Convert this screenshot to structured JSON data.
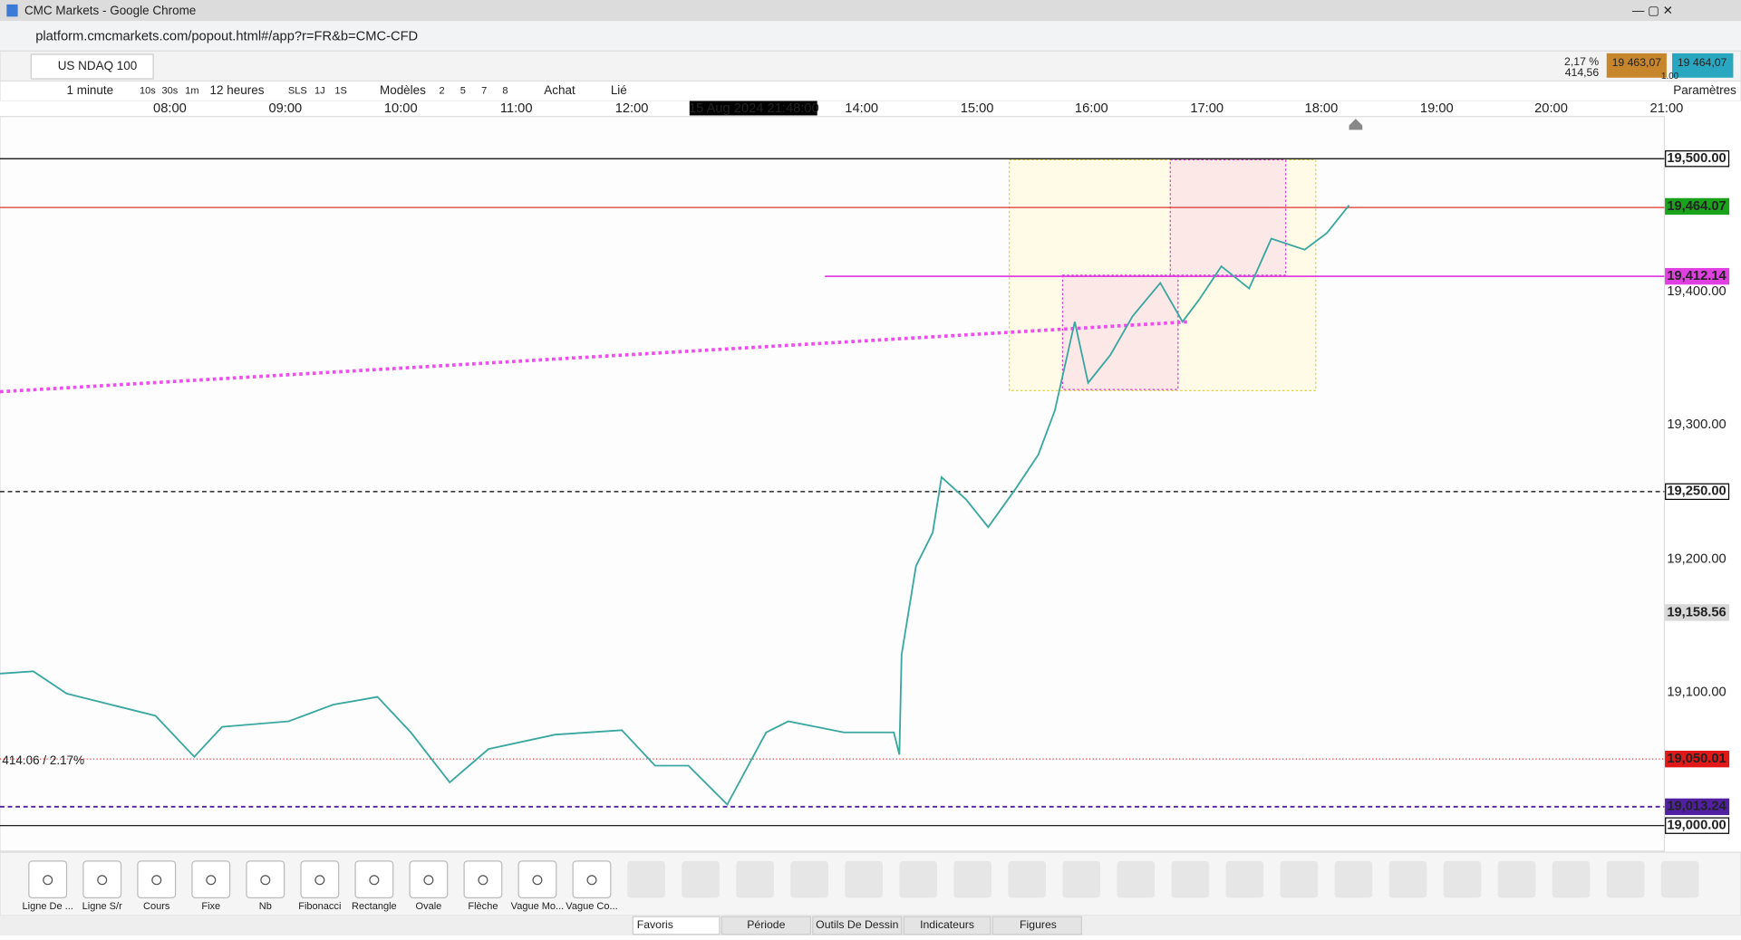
{
  "window": {
    "title": "CMC Markets - Google Chrome",
    "url": "platform.cmcmarkets.com/popout.html#/app?r=FR&b=CMC-CFD"
  },
  "instrument": {
    "name": "US NDAQ 100",
    "change_pct": "2,17 %",
    "change": "414,56",
    "sell": "19 463,07",
    "buy": "19 464,07",
    "spread": "1.00"
  },
  "toolbar": {
    "interval": "1 minute",
    "quick": [
      "10s",
      "30s",
      "1m"
    ],
    "range": "12 heures",
    "periods": [
      "SLS",
      "1J",
      "1S"
    ],
    "models": "Modèles",
    "counts": [
      "2",
      "5",
      "7",
      "8"
    ],
    "buy": "Achat",
    "linked": "Lié",
    "settings": "Paramètres"
  },
  "time_axis": {
    "labels": [
      "08:00",
      "09:00",
      "10:00",
      "11:00",
      "12:00",
      "14:00",
      "15:00",
      "16:00",
      "17:00",
      "18:00",
      "19:00",
      "20:00",
      "21:00"
    ],
    "cursor": "15 Aug 2024 21:48:00"
  },
  "price_axis": {
    "labels": [
      "19,500.00",
      "19,464.07",
      "19,412.14",
      "19,400.00",
      "19,300.00",
      "19,250.00",
      "19,200.00",
      "19,158.56",
      "19,100.00",
      "19,050.01",
      "19,013.24",
      "19,000.00"
    ]
  },
  "chart": {
    "change_label": "414.06 / 2.17%"
  },
  "tools": [
    "Ligne De ...",
    "Ligne S/r",
    "Cours",
    "Fixe",
    "Nb",
    "Fibonacci",
    "Rectangle",
    "Ovale",
    "Flèche",
    "Vague Mo...",
    "Vague Co..."
  ],
  "tabs": [
    "Favoris",
    "Période",
    "Outils De Dessin",
    "Indicateurs",
    "Figures"
  ]
}
